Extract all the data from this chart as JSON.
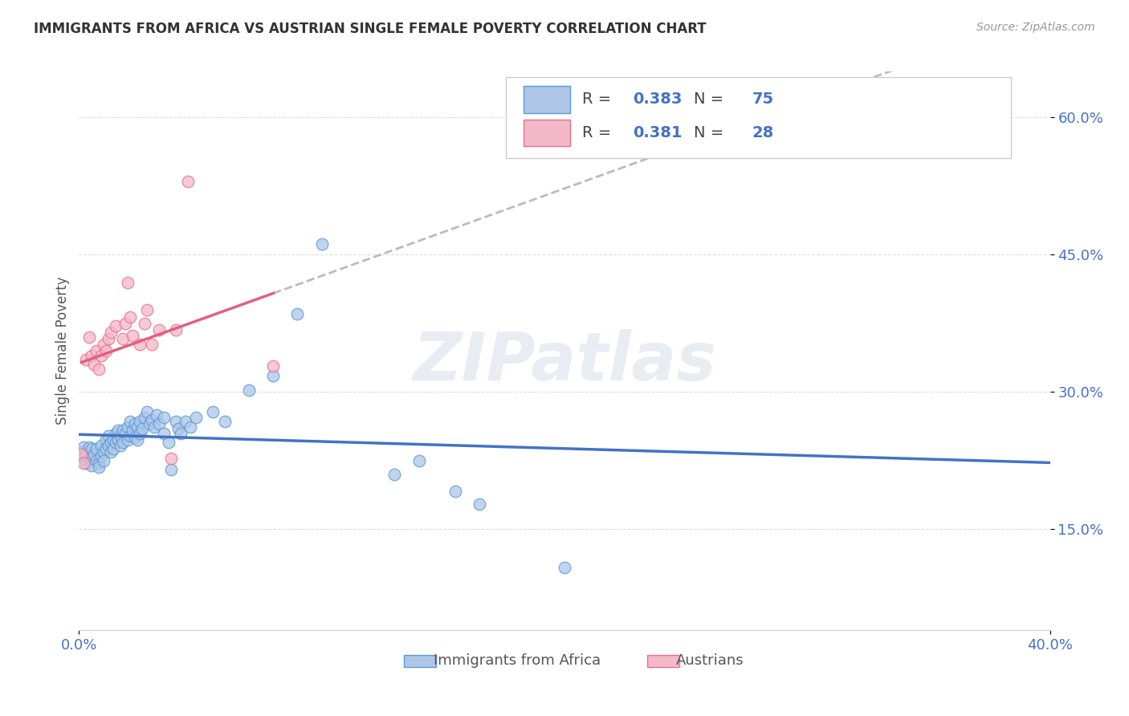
{
  "title": "IMMIGRANTS FROM AFRICA VS AUSTRIAN SINGLE FEMALE POVERTY CORRELATION CHART",
  "source": "Source: ZipAtlas.com",
  "ylabel": "Single Female Poverty",
  "xmin": 0.0,
  "xmax": 0.4,
  "ymin": 0.04,
  "ymax": 0.65,
  "yticks": [
    0.15,
    0.3,
    0.45,
    0.6
  ],
  "ytick_labels": [
    "15.0%",
    "30.0%",
    "45.0%",
    "60.0%"
  ],
  "xtick_positions": [
    0.0,
    0.4
  ],
  "xtick_labels": [
    "0.0%",
    "40.0%"
  ],
  "legend_labels": [
    "Immigrants from Africa",
    "Austrians"
  ],
  "blue_R": "0.383",
  "blue_N": "75",
  "pink_R": "0.381",
  "pink_N": "28",
  "blue_color": "#aec6e8",
  "pink_color": "#f4b8c8",
  "blue_edge_color": "#5b9bd5",
  "pink_edge_color": "#e87090",
  "blue_line_color": "#4472c4",
  "pink_line_color": "#e06080",
  "dash_line_color": "#bbbbbb",
  "watermark": "ZIPatlas",
  "blue_points": [
    [
      0.001,
      0.235
    ],
    [
      0.002,
      0.228
    ],
    [
      0.002,
      0.24
    ],
    [
      0.003,
      0.232
    ],
    [
      0.003,
      0.222
    ],
    [
      0.004,
      0.24
    ],
    [
      0.004,
      0.228
    ],
    [
      0.005,
      0.238
    ],
    [
      0.005,
      0.22
    ],
    [
      0.006,
      0.232
    ],
    [
      0.007,
      0.238
    ],
    [
      0.007,
      0.225
    ],
    [
      0.008,
      0.222
    ],
    [
      0.008,
      0.218
    ],
    [
      0.009,
      0.242
    ],
    [
      0.009,
      0.23
    ],
    [
      0.01,
      0.235
    ],
    [
      0.01,
      0.225
    ],
    [
      0.011,
      0.248
    ],
    [
      0.011,
      0.238
    ],
    [
      0.012,
      0.252
    ],
    [
      0.012,
      0.242
    ],
    [
      0.013,
      0.245
    ],
    [
      0.013,
      0.235
    ],
    [
      0.014,
      0.248
    ],
    [
      0.014,
      0.238
    ],
    [
      0.015,
      0.255
    ],
    [
      0.015,
      0.245
    ],
    [
      0.016,
      0.258
    ],
    [
      0.016,
      0.248
    ],
    [
      0.017,
      0.252
    ],
    [
      0.017,
      0.242
    ],
    [
      0.018,
      0.258
    ],
    [
      0.018,
      0.245
    ],
    [
      0.019,
      0.255
    ],
    [
      0.02,
      0.262
    ],
    [
      0.02,
      0.248
    ],
    [
      0.021,
      0.268
    ],
    [
      0.021,
      0.252
    ],
    [
      0.022,
      0.258
    ],
    [
      0.023,
      0.265
    ],
    [
      0.023,
      0.25
    ],
    [
      0.024,
      0.262
    ],
    [
      0.024,
      0.248
    ],
    [
      0.025,
      0.268
    ],
    [
      0.025,
      0.255
    ],
    [
      0.026,
      0.26
    ],
    [
      0.027,
      0.272
    ],
    [
      0.028,
      0.278
    ],
    [
      0.029,
      0.265
    ],
    [
      0.03,
      0.27
    ],
    [
      0.031,
      0.262
    ],
    [
      0.032,
      0.275
    ],
    [
      0.033,
      0.265
    ],
    [
      0.035,
      0.272
    ],
    [
      0.035,
      0.255
    ],
    [
      0.037,
      0.245
    ],
    [
      0.038,
      0.215
    ],
    [
      0.04,
      0.268
    ],
    [
      0.041,
      0.26
    ],
    [
      0.042,
      0.255
    ],
    [
      0.044,
      0.268
    ],
    [
      0.046,
      0.262
    ],
    [
      0.048,
      0.272
    ],
    [
      0.055,
      0.278
    ],
    [
      0.06,
      0.268
    ],
    [
      0.07,
      0.302
    ],
    [
      0.08,
      0.318
    ],
    [
      0.09,
      0.385
    ],
    [
      0.1,
      0.462
    ],
    [
      0.13,
      0.21
    ],
    [
      0.14,
      0.225
    ],
    [
      0.155,
      0.192
    ],
    [
      0.165,
      0.178
    ],
    [
      0.2,
      0.108
    ]
  ],
  "pink_points": [
    [
      0.001,
      0.232
    ],
    [
      0.002,
      0.222
    ],
    [
      0.003,
      0.335
    ],
    [
      0.004,
      0.36
    ],
    [
      0.005,
      0.34
    ],
    [
      0.006,
      0.33
    ],
    [
      0.007,
      0.345
    ],
    [
      0.008,
      0.325
    ],
    [
      0.009,
      0.34
    ],
    [
      0.01,
      0.352
    ],
    [
      0.011,
      0.345
    ],
    [
      0.012,
      0.358
    ],
    [
      0.013,
      0.365
    ],
    [
      0.015,
      0.372
    ],
    [
      0.018,
      0.358
    ],
    [
      0.019,
      0.375
    ],
    [
      0.02,
      0.42
    ],
    [
      0.021,
      0.382
    ],
    [
      0.022,
      0.362
    ],
    [
      0.025,
      0.352
    ],
    [
      0.027,
      0.375
    ],
    [
      0.028,
      0.39
    ],
    [
      0.03,
      0.352
    ],
    [
      0.033,
      0.368
    ],
    [
      0.038,
      0.228
    ],
    [
      0.04,
      0.368
    ],
    [
      0.045,
      0.53
    ],
    [
      0.08,
      0.328
    ]
  ]
}
